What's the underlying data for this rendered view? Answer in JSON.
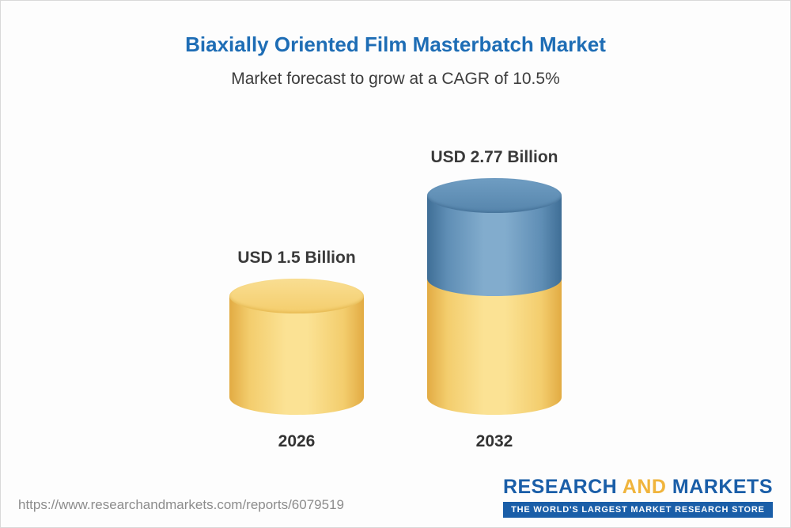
{
  "header": {
    "title": "Biaxially Oriented Film Masterbatch Market",
    "subtitle": "Market forecast to grow at a CAGR of 10.5%"
  },
  "chart_data": {
    "type": "bar",
    "variant": "3d-cylinder",
    "categories": [
      "2026",
      "2032"
    ],
    "values": [
      1.5,
      2.77
    ],
    "value_labels": [
      "USD 1.5 Billion",
      "USD 2.77 Billion"
    ],
    "unit": "USD Billion",
    "cagr_percent": 10.5,
    "ylim": [
      0,
      3
    ],
    "legend_position": "none",
    "grid": false,
    "colors": {
      "base_gold": "#F2C860",
      "growth_blue": "#5D8DB4",
      "title_blue": "#1E6DB5"
    },
    "stacking": "2032 bar = gold base equal to 2026 value plus blue growth segment"
  },
  "footer": {
    "url": "https://www.researchandmarkets.com/reports/6079519",
    "logo": {
      "part1": "RESEARCH",
      "part2": "AND",
      "part3": "MARKETS",
      "tagline": "THE WORLD'S LARGEST MARKET RESEARCH STORE"
    }
  }
}
